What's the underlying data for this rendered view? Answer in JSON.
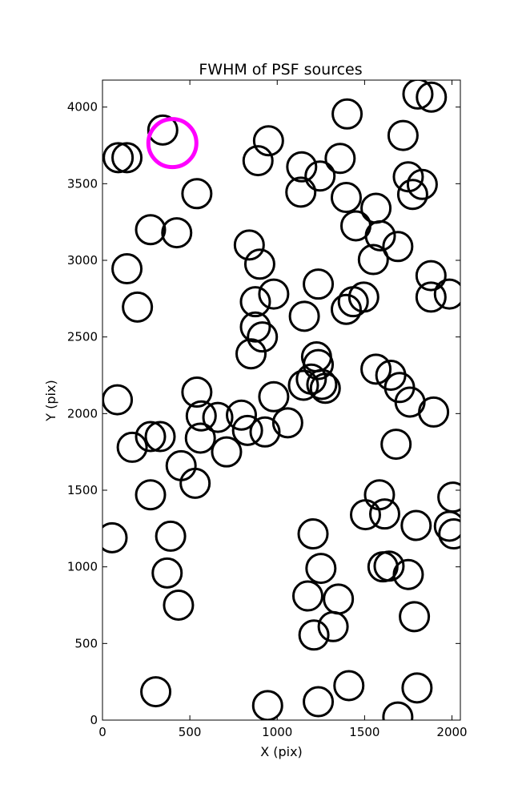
{
  "chart_data": {
    "type": "scatter",
    "title": "FWHM of PSF sources",
    "xlabel": "X (pix)",
    "ylabel": "Y (pix)",
    "xlim": [
      0,
      2048
    ],
    "ylim": [
      0,
      4176
    ],
    "xticks": [
      0,
      500,
      1000,
      1500,
      2000
    ],
    "yticks": [
      0,
      500,
      1000,
      1500,
      2000,
      2500,
      3000,
      3500,
      4000
    ],
    "grid": false,
    "marker": "open circle",
    "source_color": "#000000",
    "highlight_color": "#ff00ff",
    "series": [
      {
        "points": [
          [
            1805,
            4085
          ],
          [
            1882,
            4065
          ],
          [
            1400,
            3955
          ],
          [
            1720,
            3815
          ],
          [
            345,
            3850
          ],
          [
            90,
            3670
          ],
          [
            140,
            3670
          ],
          [
            950,
            3780
          ],
          [
            890,
            3650
          ],
          [
            1360,
            3665
          ],
          [
            1140,
            3610
          ],
          [
            1245,
            3550
          ],
          [
            1135,
            3445
          ],
          [
            1750,
            3545
          ],
          [
            1830,
            3495
          ],
          [
            1775,
            3430
          ],
          [
            540,
            3435
          ],
          [
            1395,
            3410
          ],
          [
            1565,
            3340
          ],
          [
            1450,
            3225
          ],
          [
            1590,
            3160
          ],
          [
            275,
            3200
          ],
          [
            425,
            3180
          ],
          [
            840,
            3100
          ],
          [
            1690,
            3090
          ],
          [
            900,
            2975
          ],
          [
            140,
            2945
          ],
          [
            1550,
            3005
          ],
          [
            1880,
            2900
          ],
          [
            1235,
            2845
          ],
          [
            980,
            2780
          ],
          [
            875,
            2730
          ],
          [
            1495,
            2760
          ],
          [
            1880,
            2760
          ],
          [
            1985,
            2780
          ],
          [
            1435,
            2730
          ],
          [
            1395,
            2680
          ],
          [
            1155,
            2635
          ],
          [
            200,
            2695
          ],
          [
            875,
            2565
          ],
          [
            915,
            2500
          ],
          [
            850,
            2390
          ],
          [
            1225,
            2370
          ],
          [
            1235,
            2320
          ],
          [
            1565,
            2290
          ],
          [
            1650,
            2250
          ],
          [
            1700,
            2170
          ],
          [
            1760,
            2075
          ],
          [
            1895,
            2010
          ],
          [
            1195,
            2225
          ],
          [
            1150,
            2185
          ],
          [
            1255,
            2190
          ],
          [
            1275,
            2165
          ],
          [
            540,
            2140
          ],
          [
            85,
            2090
          ],
          [
            980,
            2110
          ],
          [
            565,
            1985
          ],
          [
            660,
            1975
          ],
          [
            795,
            1990
          ],
          [
            830,
            1890
          ],
          [
            930,
            1880
          ],
          [
            1060,
            1940
          ],
          [
            275,
            1850
          ],
          [
            330,
            1850
          ],
          [
            170,
            1780
          ],
          [
            560,
            1840
          ],
          [
            710,
            1750
          ],
          [
            1680,
            1800
          ],
          [
            450,
            1660
          ],
          [
            530,
            1545
          ],
          [
            275,
            1470
          ],
          [
            1585,
            1470
          ],
          [
            1505,
            1340
          ],
          [
            1615,
            1345
          ],
          [
            2005,
            1455
          ],
          [
            1795,
            1270
          ],
          [
            1985,
            1265
          ],
          [
            2010,
            1215
          ],
          [
            55,
            1190
          ],
          [
            390,
            1200
          ],
          [
            1205,
            1215
          ],
          [
            1605,
            1000
          ],
          [
            1640,
            1005
          ],
          [
            1750,
            950
          ],
          [
            370,
            960
          ],
          [
            1250,
            990
          ],
          [
            1175,
            810
          ],
          [
            1350,
            790
          ],
          [
            435,
            750
          ],
          [
            1785,
            675
          ],
          [
            1210,
            555
          ],
          [
            1320,
            610
          ],
          [
            1410,
            225
          ],
          [
            305,
            185
          ],
          [
            1800,
            210
          ],
          [
            945,
            95
          ],
          [
            1235,
            120
          ],
          [
            1690,
            20
          ]
        ]
      },
      {
        "name": "highlight",
        "points": [
          [
            400,
            3765
          ]
        ]
      }
    ]
  }
}
